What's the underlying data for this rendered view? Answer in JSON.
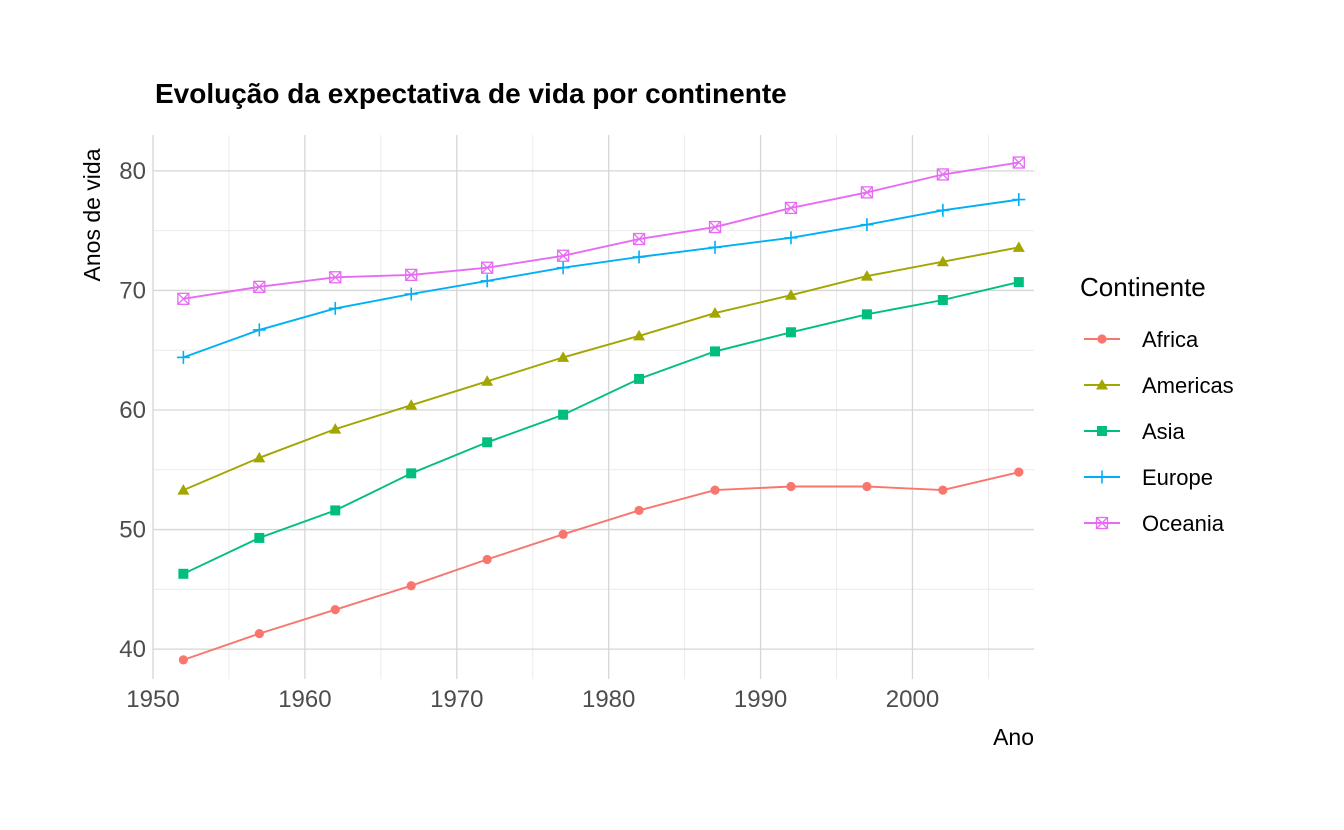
{
  "chart_data": {
    "type": "line",
    "title": "Evolução da expectativa de vida por continente",
    "xlabel": "Ano",
    "ylabel": "Anos de vida",
    "xlim": [
      1950,
      2008
    ],
    "ylim": [
      37.5,
      83
    ],
    "xticks": [
      1950,
      1960,
      1970,
      1980,
      1990,
      2000
    ],
    "yticks": [
      40,
      50,
      60,
      70,
      80
    ],
    "grid": true,
    "x": [
      1952,
      1957,
      1962,
      1967,
      1972,
      1977,
      1982,
      1987,
      1992,
      1997,
      2002,
      2007
    ],
    "legend": {
      "title": "Continente",
      "position": "right"
    },
    "series": [
      {
        "name": "Africa",
        "color": "#F8766D",
        "marker": "circle",
        "values": [
          39.1,
          41.3,
          43.3,
          45.3,
          47.5,
          49.6,
          51.6,
          53.3,
          53.6,
          53.6,
          53.3,
          54.8
        ]
      },
      {
        "name": "Americas",
        "color": "#A3A500",
        "marker": "triangle",
        "values": [
          53.3,
          56.0,
          58.4,
          60.4,
          62.4,
          64.4,
          66.2,
          68.1,
          69.6,
          71.2,
          72.4,
          73.6
        ]
      },
      {
        "name": "Asia",
        "color": "#00BF7D",
        "marker": "square",
        "values": [
          46.3,
          49.3,
          51.6,
          54.7,
          57.3,
          59.6,
          62.6,
          64.9,
          66.5,
          68.0,
          69.2,
          70.7
        ]
      },
      {
        "name": "Europe",
        "color": "#00B0F6",
        "marker": "plus",
        "values": [
          64.4,
          66.7,
          68.5,
          69.7,
          70.8,
          71.9,
          72.8,
          73.6,
          74.4,
          75.5,
          76.7,
          77.6
        ]
      },
      {
        "name": "Oceania",
        "color": "#E76BF3",
        "marker": "boxcross",
        "values": [
          69.3,
          70.3,
          71.1,
          71.3,
          71.9,
          72.9,
          74.3,
          75.3,
          76.9,
          78.2,
          79.7,
          80.7
        ]
      }
    ]
  }
}
